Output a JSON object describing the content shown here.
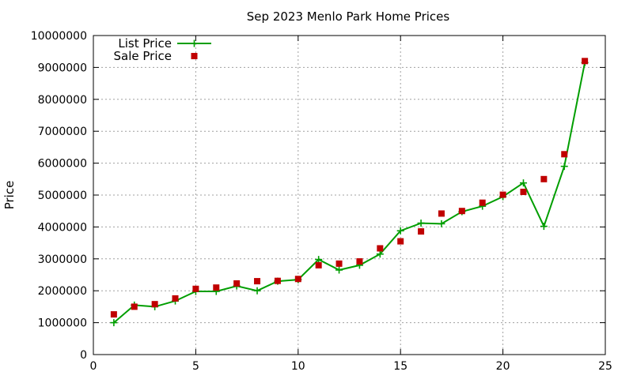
{
  "chart_data": {
    "type": "line",
    "title": "Sep 2023 Menlo Park Home Prices",
    "xlabel": "",
    "ylabel": "Price",
    "xlim": [
      0,
      25
    ],
    "ylim": [
      0,
      10000000
    ],
    "x_ticks": [
      0,
      5,
      10,
      15,
      20,
      25
    ],
    "y_ticks": [
      0,
      1000000,
      2000000,
      3000000,
      4000000,
      5000000,
      6000000,
      7000000,
      8000000,
      9000000,
      10000000
    ],
    "grid": true,
    "legend_position": "top-left",
    "series": [
      {
        "name": "List Price",
        "style": "line+cross",
        "color": "#009e00",
        "x": [
          1,
          2,
          3,
          4,
          5,
          6,
          7,
          8,
          9,
          10,
          11,
          12,
          13,
          14,
          15,
          16,
          17,
          18,
          19,
          20,
          21,
          22,
          23,
          24
        ],
        "values": [
          1000000,
          1550000,
          1500000,
          1680000,
          1980000,
          1980000,
          2150000,
          2000000,
          2300000,
          2350000,
          2980000,
          2650000,
          2800000,
          3150000,
          3880000,
          4120000,
          4100000,
          4480000,
          4650000,
          4950000,
          5380000,
          4020000,
          5900000,
          9150000
        ]
      },
      {
        "name": "Sale Price",
        "style": "square-marker",
        "color": "#c00000",
        "x": [
          1,
          2,
          3,
          4,
          5,
          6,
          7,
          8,
          9,
          10,
          11,
          12,
          13,
          14,
          15,
          16,
          17,
          18,
          19,
          20,
          21,
          22,
          23,
          24
        ],
        "values": [
          1260000,
          1500000,
          1580000,
          1760000,
          2060000,
          2100000,
          2230000,
          2300000,
          2310000,
          2370000,
          2800000,
          2850000,
          2920000,
          3330000,
          3550000,
          3860000,
          4420000,
          4500000,
          4760000,
          5010000,
          5100000,
          5500000,
          6280000,
          9200000
        ]
      }
    ]
  }
}
